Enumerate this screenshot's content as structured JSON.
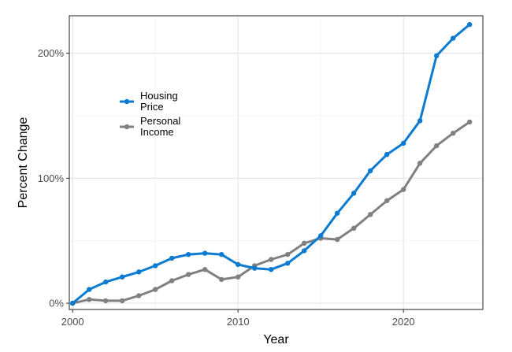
{
  "chart_data": {
    "type": "line",
    "title": "",
    "xlabel": "Year",
    "ylabel": "Percent Change",
    "xlim": [
      1999.8,
      2024.8
    ],
    "ylim": [
      -5,
      230
    ],
    "x_ticks": [
      2000,
      2010,
      2020
    ],
    "y_ticks": [
      0,
      100,
      200
    ],
    "y_tick_labels": [
      "0%",
      "100%",
      "200%"
    ],
    "grid": true,
    "legend_position": "upper-left inside",
    "x": [
      2000,
      2001,
      2002,
      2003,
      2004,
      2005,
      2006,
      2007,
      2008,
      2009,
      2010,
      2011,
      2012,
      2013,
      2014,
      2015,
      2016,
      2017,
      2018,
      2019,
      2020,
      2021,
      2022,
      2023,
      2024
    ],
    "series": [
      {
        "name": "Housing Price",
        "legend_lines": [
          "Housing",
          "Price"
        ],
        "color": "#0a7bd0",
        "values": [
          0,
          11,
          17,
          21,
          25,
          30,
          36,
          39,
          40,
          39,
          31,
          28,
          27,
          32,
          42,
          54,
          72,
          88,
          106,
          119,
          128,
          146,
          198,
          212,
          223
        ]
      },
      {
        "name": "Personal Income",
        "legend_lines": [
          "Personal",
          "Income"
        ],
        "color": "#808080",
        "values": [
          0,
          3,
          2,
          2,
          6,
          11,
          18,
          23,
          27,
          19,
          21,
          30,
          35,
          39,
          48,
          52,
          51,
          60,
          71,
          82,
          91,
          112,
          126,
          136,
          145
        ]
      }
    ]
  }
}
